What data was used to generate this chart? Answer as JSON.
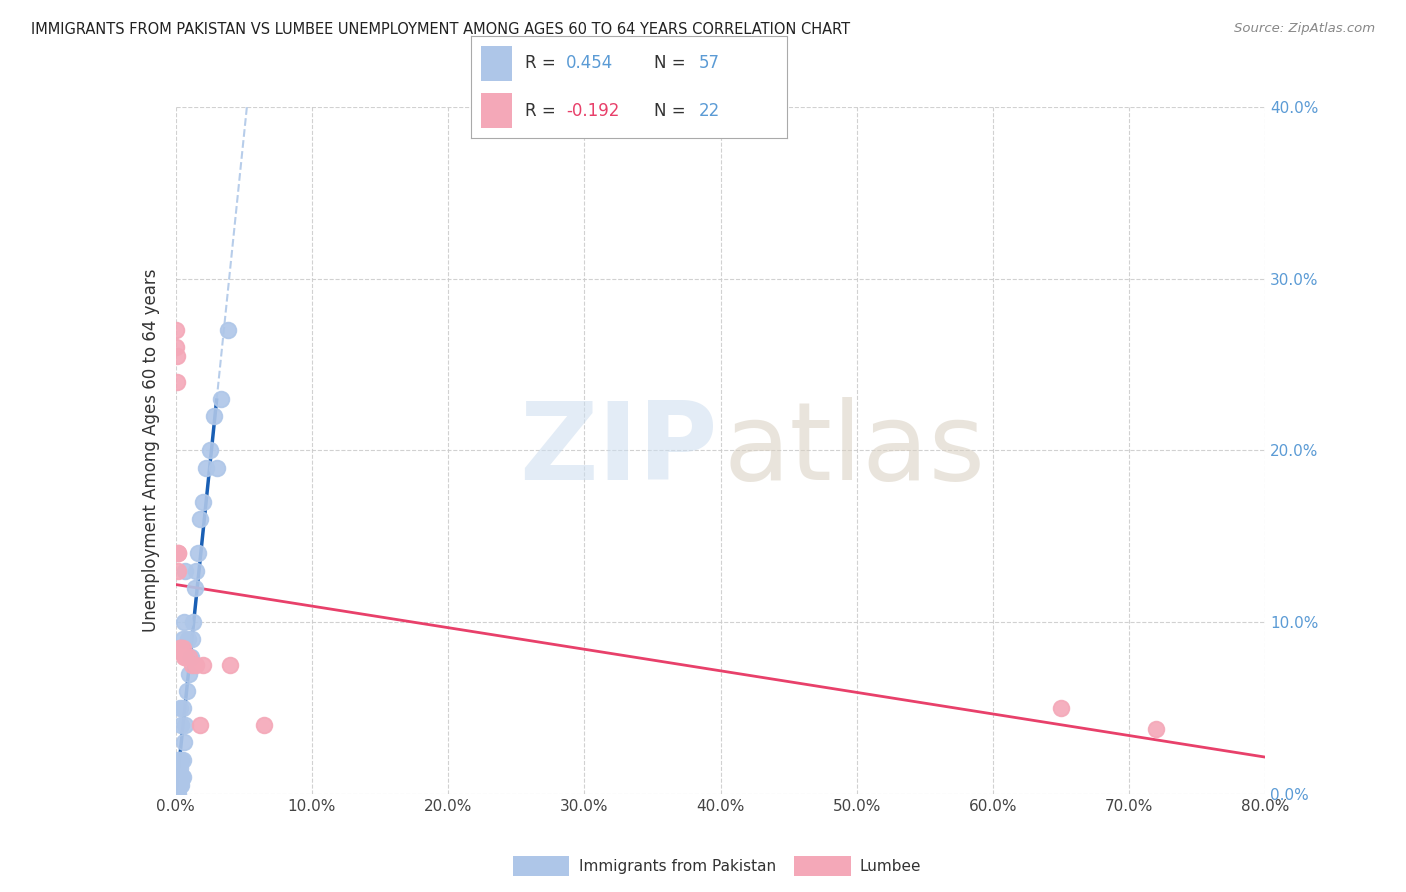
{
  "title": "IMMIGRANTS FROM PAKISTAN VS LUMBEE UNEMPLOYMENT AMONG AGES 60 TO 64 YEARS CORRELATION CHART",
  "source": "Source: ZipAtlas.com",
  "ylabel": "Unemployment Among Ages 60 to 64 years",
  "x_min": 0.0,
  "x_max": 0.8,
  "y_min": 0.0,
  "y_max": 0.4,
  "pakistan_R": 0.454,
  "pakistan_N": 57,
  "lumbee_R": -0.192,
  "lumbee_N": 22,
  "pakistan_color": "#aec6e8",
  "lumbee_color": "#f4a8b8",
  "pakistan_trend_color": "#1a5fb4",
  "lumbee_trend_color": "#e8406a",
  "pakistan_trend_dash_color": "#b0c8e8",
  "legend_label_pakistan": "Immigrants from Pakistan",
  "legend_label_lumbee": "Lumbee",
  "pak_x": [
    0.0003,
    0.0005,
    0.0007,
    0.0008,
    0.001,
    0.001,
    0.001,
    0.001,
    0.0012,
    0.0013,
    0.0015,
    0.0015,
    0.0017,
    0.002,
    0.002,
    0.002,
    0.002,
    0.002,
    0.0022,
    0.0025,
    0.003,
    0.003,
    0.003,
    0.003,
    0.003,
    0.0032,
    0.0035,
    0.004,
    0.004,
    0.004,
    0.0042,
    0.0045,
    0.005,
    0.005,
    0.005,
    0.005,
    0.006,
    0.006,
    0.007,
    0.007,
    0.008,
    0.009,
    0.01,
    0.011,
    0.012,
    0.013,
    0.014,
    0.015,
    0.016,
    0.018,
    0.02,
    0.022,
    0.025,
    0.028,
    0.03,
    0.033,
    0.038
  ],
  "pak_y": [
    0.002,
    0.003,
    0.002,
    0.003,
    0.0,
    0.005,
    0.005,
    0.005,
    0.005,
    0.01,
    0.005,
    0.01,
    0.005,
    0.0,
    0.005,
    0.01,
    0.015,
    0.02,
    0.005,
    0.01,
    0.005,
    0.01,
    0.015,
    0.02,
    0.05,
    0.005,
    0.01,
    0.01,
    0.02,
    0.04,
    0.005,
    0.01,
    0.01,
    0.02,
    0.05,
    0.09,
    0.03,
    0.1,
    0.04,
    0.13,
    0.06,
    0.09,
    0.07,
    0.08,
    0.09,
    0.1,
    0.12,
    0.13,
    0.14,
    0.16,
    0.17,
    0.19,
    0.2,
    0.22,
    0.19,
    0.23,
    0.27
  ],
  "lum_x": [
    0.0003,
    0.0005,
    0.001,
    0.001,
    0.0015,
    0.002,
    0.002,
    0.003,
    0.003,
    0.004,
    0.005,
    0.006,
    0.007,
    0.01,
    0.012,
    0.015,
    0.018,
    0.02,
    0.04,
    0.065,
    0.65,
    0.72
  ],
  "lum_y": [
    0.27,
    0.26,
    0.255,
    0.24,
    0.14,
    0.14,
    0.13,
    0.085,
    0.085,
    0.085,
    0.085,
    0.08,
    0.08,
    0.08,
    0.075,
    0.075,
    0.04,
    0.075,
    0.075,
    0.04,
    0.05,
    0.038
  ]
}
